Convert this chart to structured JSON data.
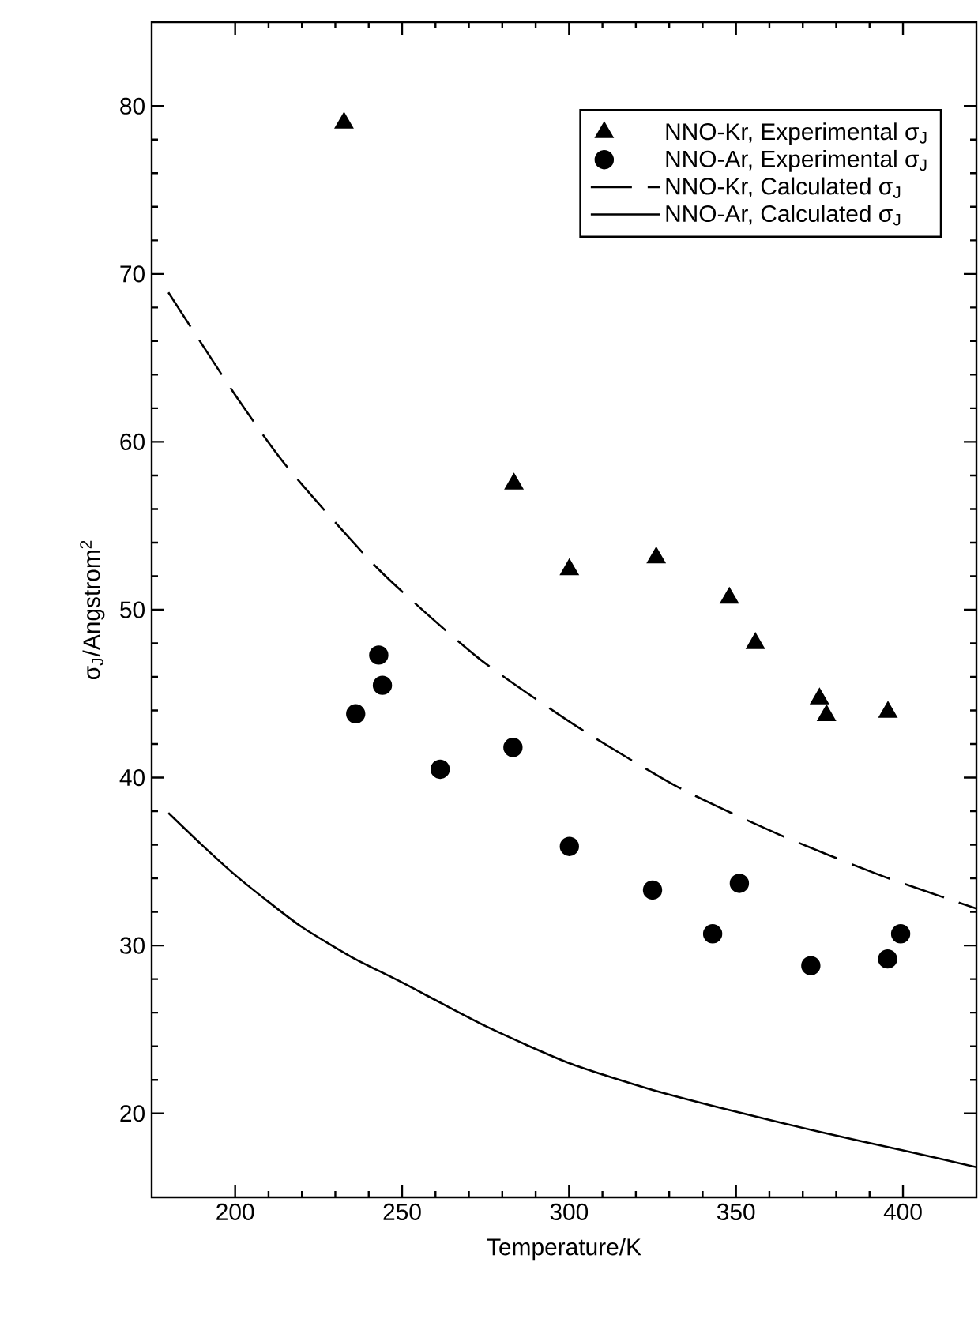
{
  "chart_data": {
    "type": "scatter",
    "xlabel": "Temperature/K",
    "ylabel": "σ$_{J}$/Angstrom$^{2}$",
    "xlim": [
      175,
      422
    ],
    "ylim": [
      15,
      85
    ],
    "xticks": [
      200,
      250,
      300,
      350,
      400
    ],
    "yticks": [
      20,
      30,
      40,
      50,
      60,
      70,
      80
    ],
    "legend": "top right",
    "series": [
      {
        "name": "NNO-Kr, Experimental σ$_{J}$",
        "marker": "triangle",
        "color": "#000000",
        "x": [
          232.6,
          283.5,
          300.1,
          326.1,
          348.0,
          355.8,
          375.0,
          377.1,
          395.5
        ],
        "values": [
          79.0,
          57.5,
          52.4,
          53.1,
          50.7,
          48.0,
          44.7,
          43.7,
          43.9
        ]
      },
      {
        "name": "NNO-Ar, Experimental σ$_{J}$",
        "marker": "circle",
        "color": "#000000",
        "x": [
          236.1,
          243.0,
          244.1,
          261.4,
          283.2,
          300.1,
          325.0,
          343.0,
          351.0,
          372.4,
          395.4,
          399.3
        ],
        "values": [
          43.8,
          47.3,
          45.5,
          40.5,
          41.8,
          35.9,
          33.3,
          30.7,
          33.7,
          28.8,
          29.2,
          30.7
        ]
      },
      {
        "name": "NNO-Kr, Calculated σ$_{J}$",
        "type": "line",
        "line_style": "dashed",
        "color": "#000000",
        "x": [
          180,
          200,
          216,
          243,
          273,
          303.5,
          333,
          363,
          393,
          422
        ],
        "values": [
          68.9,
          62.8,
          58.4,
          52.4,
          47.1,
          42.9,
          39.4,
          36.6,
          34.2,
          32.2
        ]
      },
      {
        "name": "NNO-Ar, Calculated σ$_{J}$",
        "type": "line",
        "line_style": "solid",
        "color": "#000000",
        "x": [
          180,
          190,
          200,
          210,
          220,
          235,
          250,
          275,
          300,
          325,
          350,
          375,
          400,
          422
        ],
        "values": [
          37.9,
          36.0,
          34.2,
          32.6,
          31.1,
          29.3,
          27.8,
          25.2,
          23.0,
          21.4,
          20.1,
          18.9,
          17.8,
          16.8
        ]
      }
    ]
  }
}
